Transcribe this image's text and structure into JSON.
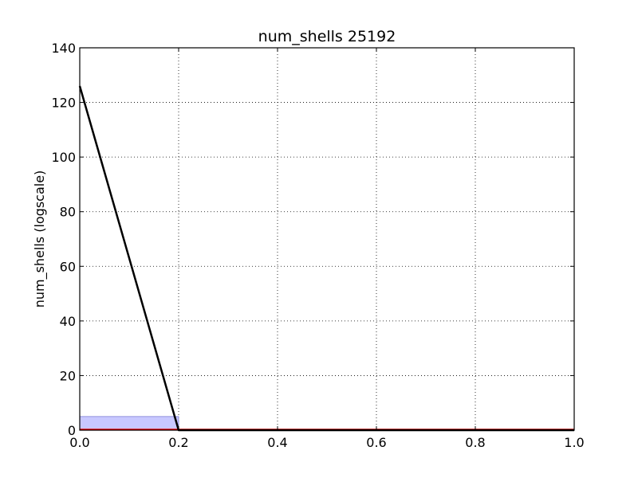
{
  "chart_data": {
    "type": "line",
    "title": "num_shells 25192",
    "xlabel": "",
    "ylabel": "num_shells (logscale)",
    "xlim": [
      0.0,
      1.0
    ],
    "ylim": [
      0,
      140
    ],
    "grid": true,
    "x_ticks": [
      0.0,
      0.2,
      0.4,
      0.6,
      0.8,
      1.0
    ],
    "x_tick_labels": [
      "0.0",
      "0.2",
      "0.4",
      "0.6",
      "0.8",
      "1.0"
    ],
    "y_ticks": [
      0,
      20,
      40,
      60,
      80,
      100,
      120,
      140
    ],
    "y_tick_labels": [
      "0",
      "20",
      "40",
      "60",
      "80",
      "100",
      "120",
      "140"
    ],
    "band": {
      "x": [
        0.0,
        0.2
      ],
      "y": [
        0,
        5
      ],
      "color": "#c8c8ff",
      "edge_color": "#7b7bd6"
    },
    "series": [
      {
        "x": [
          0.0,
          0.2,
          1.0
        ],
        "y": [
          126,
          0,
          0
        ],
        "color": "#000000"
      },
      {
        "x": [
          0.0,
          1.0
        ],
        "y": [
          0.3,
          0.3
        ],
        "color": "#e00000"
      }
    ]
  }
}
